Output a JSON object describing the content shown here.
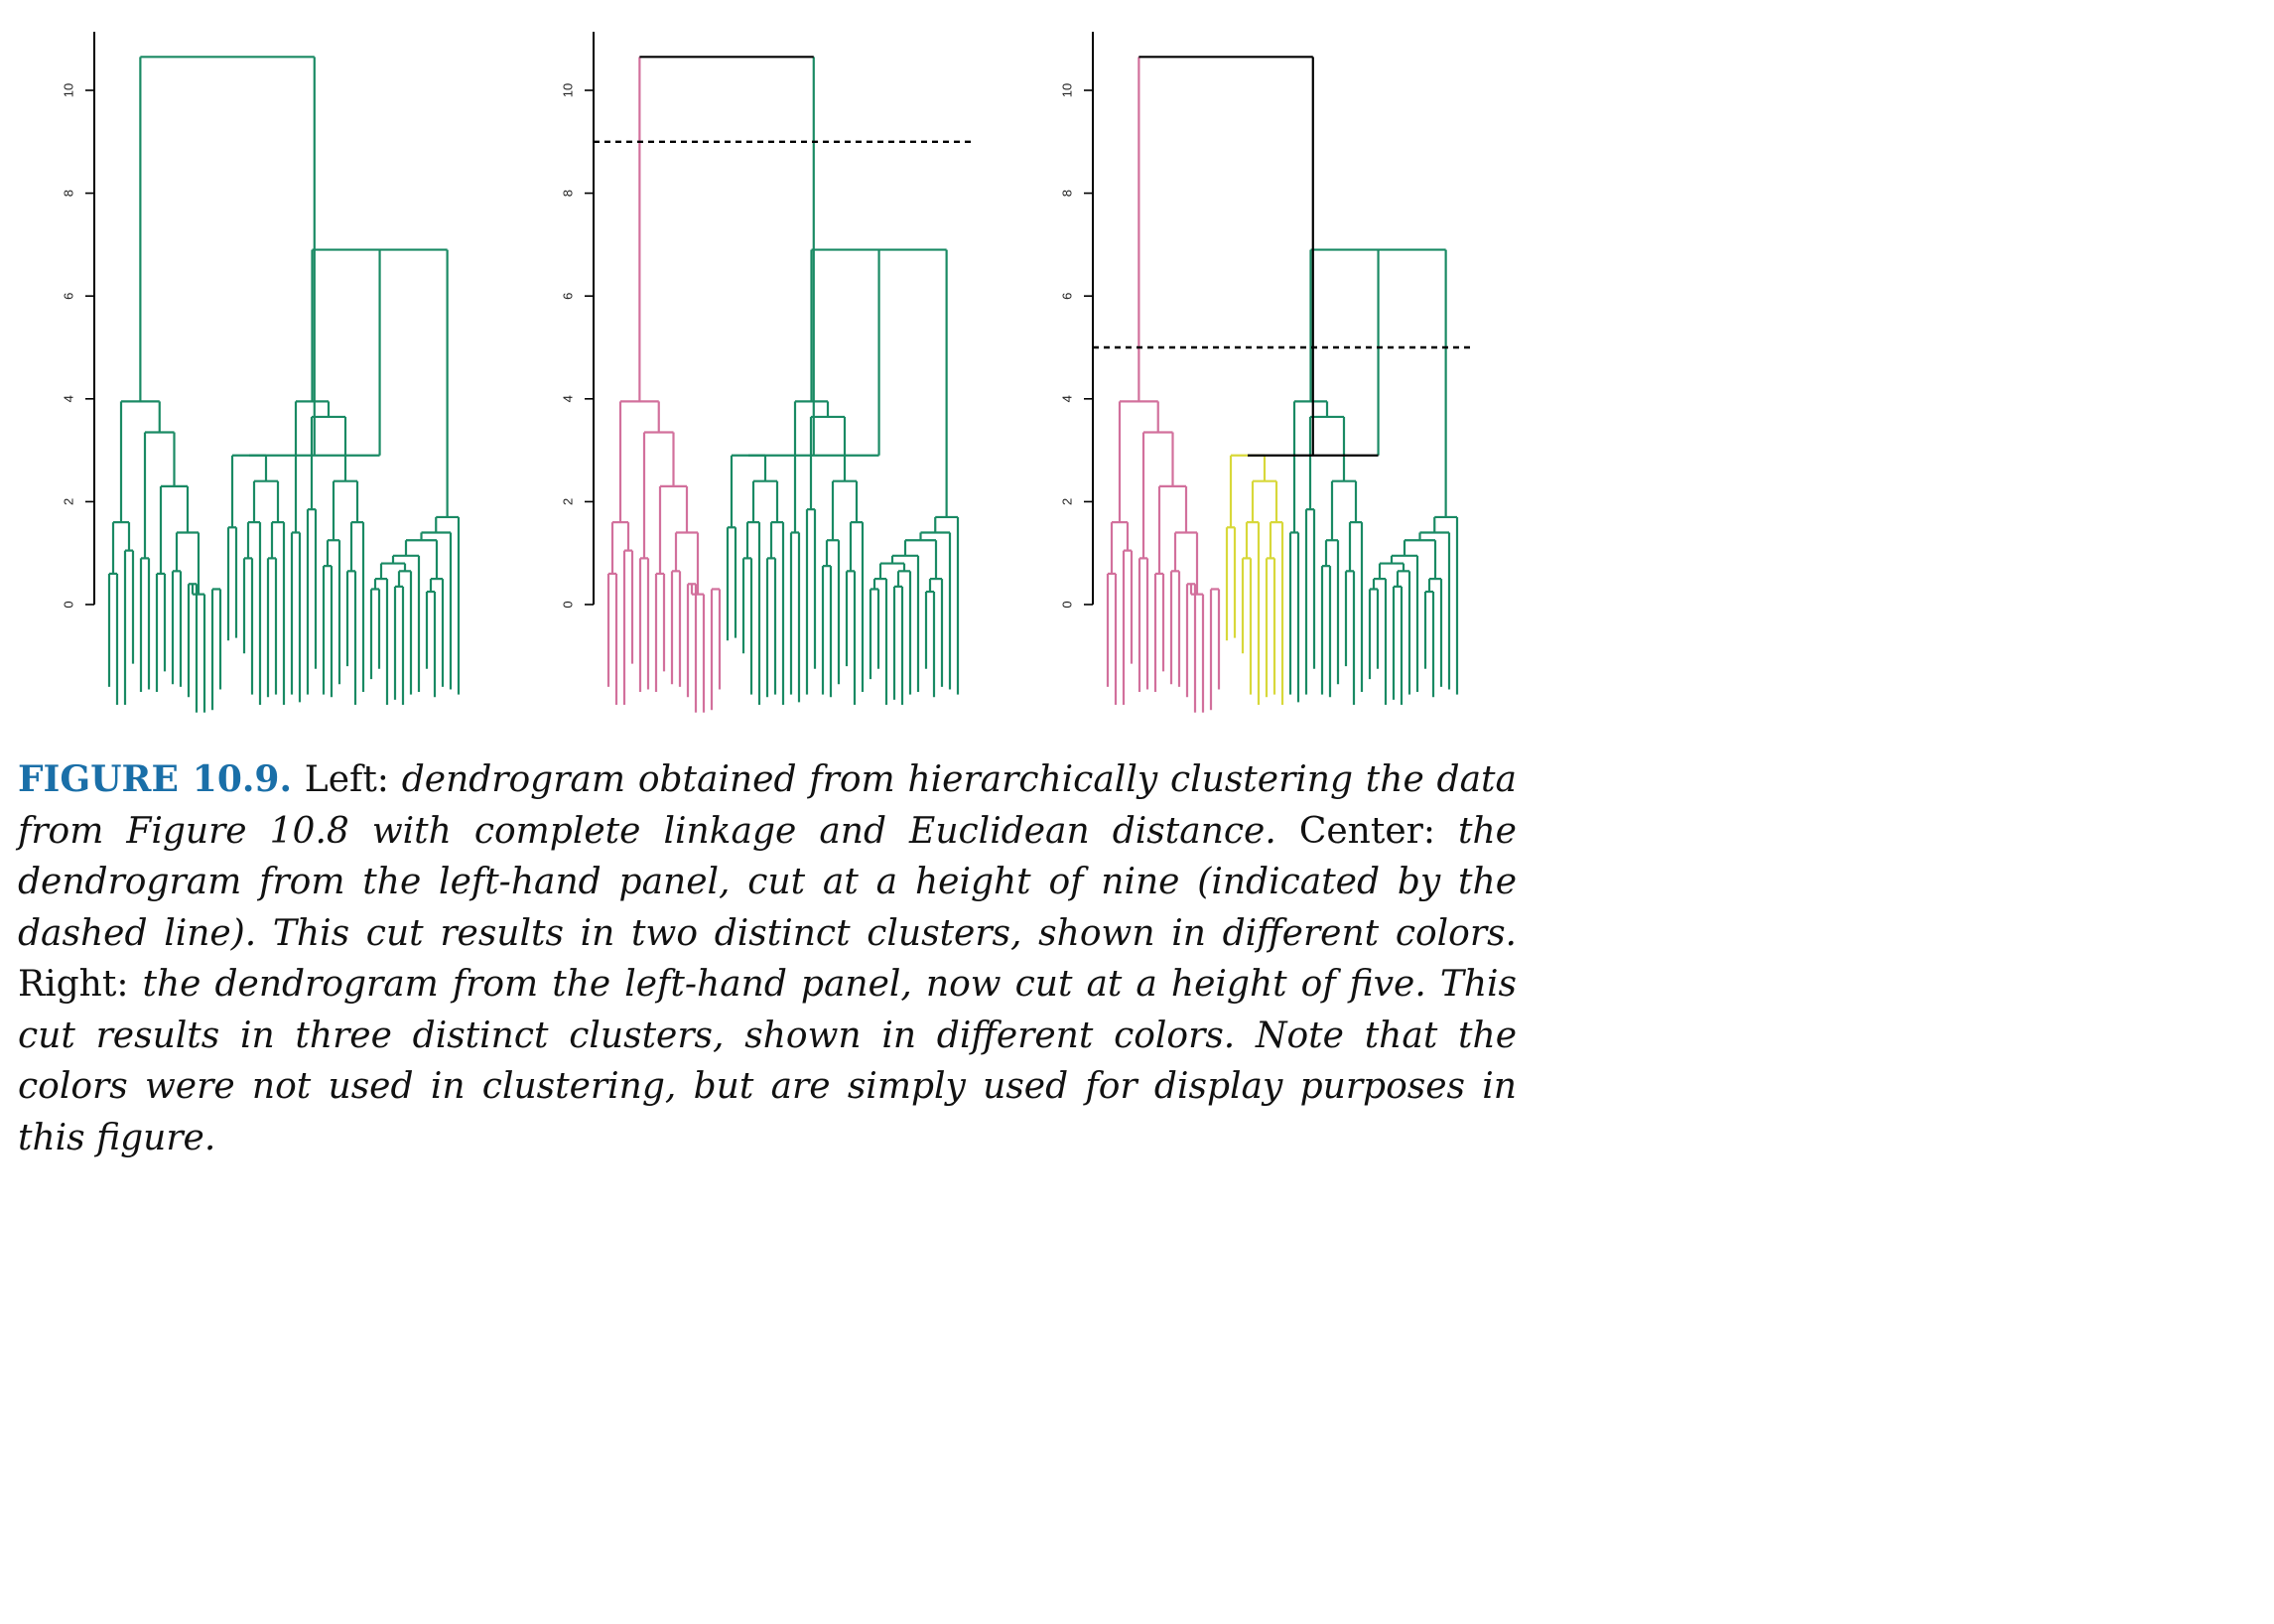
{
  "colors": {
    "link": "#000000",
    "green": "#1a8a64",
    "pink": "#d2709c",
    "yellow": "#d8d83a",
    "caption_label": "#1a6fa8"
  },
  "chart_data": [
    {
      "type": "dendrogram",
      "panel": "left",
      "ylim": [
        -2,
        11
      ],
      "yticks": [
        0,
        2,
        4,
        6,
        8,
        10
      ],
      "cut_height": null,
      "clusters": [
        {
          "color": "green",
          "leaf_range": [
            0,
            44
          ]
        }
      ]
    },
    {
      "type": "dendrogram",
      "panel": "center",
      "ylim": [
        -2,
        11
      ],
      "yticks": [
        0,
        2,
        4,
        6,
        8,
        10
      ],
      "cut_height": 9,
      "clusters": [
        {
          "color": "pink",
          "leaf_range": [
            0,
            14
          ]
        },
        {
          "color": "green",
          "leaf_range": [
            15,
            44
          ]
        }
      ]
    },
    {
      "type": "dendrogram",
      "panel": "right",
      "ylim": [
        -2,
        11
      ],
      "yticks": [
        0,
        2,
        4,
        6,
        8,
        10
      ],
      "cut_height": 5,
      "clusters": [
        {
          "color": "pink",
          "leaf_range": [
            0,
            14
          ]
        },
        {
          "color": "yellow",
          "leaf_range": [
            15,
            22
          ]
        },
        {
          "color": "green",
          "leaf_range": [
            23,
            44
          ]
        }
      ]
    }
  ],
  "tree": {
    "leaf_bottoms": [
      -1.6,
      -1.95,
      -1.95,
      -1.15,
      -1.7,
      -1.65,
      -1.7,
      -1.3,
      -1.55,
      -1.6,
      -1.8,
      -2.1,
      -2.1,
      -2.05,
      -1.65,
      -0.7,
      -0.65,
      -0.95,
      -1.75,
      -1.95,
      -1.8,
      -1.75,
      -1.95,
      -1.75,
      -1.9,
      -1.75,
      -1.25,
      -1.75,
      -1.8,
      -1.55,
      -1.2,
      -1.95,
      -1.7,
      -1.45,
      -1.25,
      -1.95,
      -1.85,
      -1.95,
      -1.75,
      -1.7,
      -1.25,
      -1.8,
      -1.6,
      -1.65,
      -1.75
    ],
    "merges": [
      [
        -1,
        -2,
        0.6
      ],
      [
        -3,
        -4,
        1.05
      ],
      [
        1,
        2,
        1.6
      ],
      [
        -5,
        -6,
        0.9
      ],
      [
        -7,
        -8,
        0.6
      ],
      [
        -9,
        -10,
        0.65
      ],
      [
        -11,
        -12,
        0.4
      ],
      [
        7,
        -13,
        0.2
      ],
      [
        6,
        8,
        1.4
      ],
      [
        5,
        9,
        2.3
      ],
      [
        4,
        10,
        3.35
      ],
      [
        3,
        11,
        3.95
      ],
      [
        -14,
        -15,
        0.3
      ],
      [
        -16,
        -17,
        1.5
      ],
      [
        -18,
        -19,
        0.9
      ],
      [
        15,
        -20,
        1.6
      ],
      [
        -21,
        -22,
        0.9
      ],
      [
        -23,
        17,
        1.6
      ],
      [
        16,
        18,
        2.4
      ],
      [
        14,
        19,
        2.9
      ],
      [
        -24,
        -25,
        1.4
      ],
      [
        -26,
        -27,
        1.85
      ],
      [
        -28,
        -29,
        0.75
      ],
      [
        23,
        -30,
        1.25
      ],
      [
        -31,
        -32,
        0.65
      ],
      [
        25,
        -33,
        1.6
      ],
      [
        24,
        26,
        2.4
      ],
      [
        22,
        27,
        3.65
      ],
      [
        21,
        28,
        3.95
      ],
      [
        -34,
        -35,
        0.3
      ],
      [
        30,
        -36,
        0.5
      ],
      [
        -37,
        -38,
        0.35
      ],
      [
        -39,
        32,
        0.65
      ],
      [
        31,
        33,
        0.8
      ],
      [
        -40,
        34,
        0.95
      ],
      [
        -41,
        -42,
        0.25
      ],
      [
        -43,
        36,
        0.5
      ],
      [
        35,
        37,
        1.25
      ],
      [
        38,
        -44,
        1.4
      ],
      [
        -45,
        39,
        1.7
      ],
      [
        29,
        40,
        6.9
      ],
      [
        20,
        41,
        2.9
      ],
      [
        12,
        42,
        10.65
      ]
    ]
  },
  "caption": {
    "label": "FIGURE 10.9.",
    "left_label": "Left:",
    "left_text": "dendrogram obtained from hierarchically clustering the data from Figure 10.8 with complete linkage and Euclidean distance.",
    "center_label": "Center:",
    "center_text": "the dendrogram from the left-hand panel, cut at a height of nine (indicated by the dashed line). This cut results in two distinct clusters, shown in different colors.",
    "right_label": "Right:",
    "right_text": "the dendrogram from the left-hand panel, now cut at a height of five. This cut results in three distinct clusters, shown in different colors. Note that the colors were not used in clustering, but are simply used for display purposes in this figure."
  }
}
